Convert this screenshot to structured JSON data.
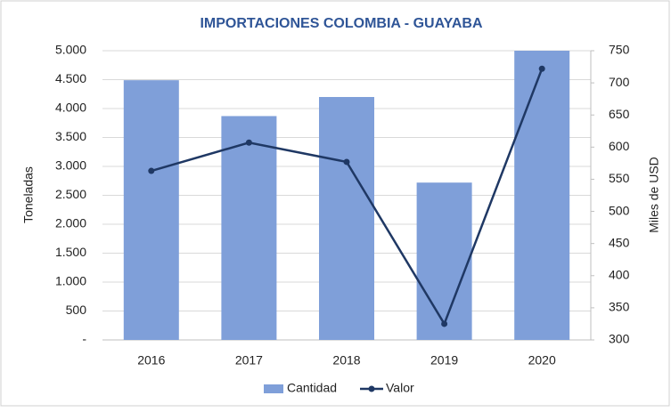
{
  "chart_data": {
    "type": "bar-line",
    "title": "IMPORTACIONES COLOMBIA - GUAYABA",
    "categories": [
      "2016",
      "2017",
      "2018",
      "2019",
      "2020"
    ],
    "series": [
      {
        "name": "Cantidad",
        "type": "bar",
        "color": "#7f9fd9",
        "values": [
          4490,
          3870,
          4200,
          2720,
          5000
        ]
      },
      {
        "name": "Valor",
        "type": "line",
        "axis": "y2",
        "color": "#1f3864",
        "values": [
          563,
          607,
          577,
          325,
          722
        ]
      }
    ],
    "ylabel": "Toneladas",
    "y2label": "Miles de USD",
    "ylim": [
      0,
      5000
    ],
    "yticks": [
      {
        "value": 0,
        "label": "-"
      },
      500,
      {
        "value": 1000,
        "label": "1.000"
      },
      {
        "value": 1500,
        "label": "1.500"
      },
      {
        "value": 2000,
        "label": "2.000"
      },
      {
        "value": 2500,
        "label": "2.500"
      },
      {
        "value": 3000,
        "label": "3.000"
      },
      {
        "value": 3500,
        "label": "3.500"
      },
      {
        "value": 4000,
        "label": "4.000"
      },
      {
        "value": 4500,
        "label": "4.500"
      },
      {
        "value": 5000,
        "label": "5.000"
      }
    ],
    "y2lim": [
      300,
      750
    ],
    "y2ticks": [
      300,
      350,
      400,
      450,
      500,
      550,
      600,
      650,
      700,
      750
    ],
    "grid": true,
    "legend": "bottom"
  }
}
